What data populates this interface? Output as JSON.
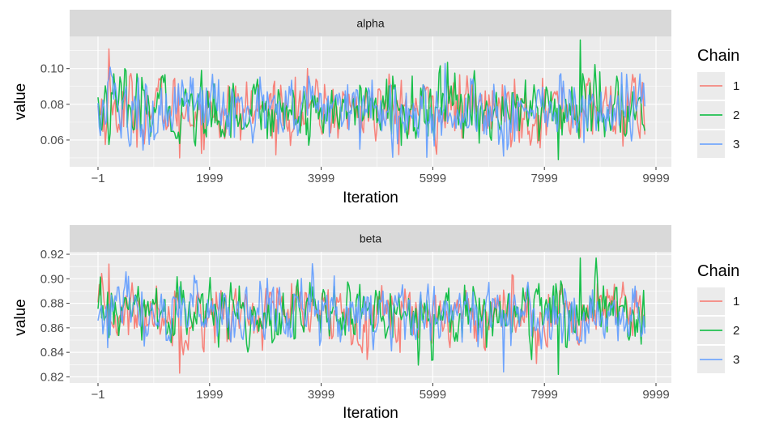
{
  "chart_data": [
    {
      "type": "line",
      "strip_title": "alpha",
      "xlabel": "Iteration",
      "ylabel": "value",
      "xlim": [
        -1,
        9999
      ],
      "ylim": [
        0.045,
        0.118
      ],
      "x_ticks": [
        -1,
        1999,
        3999,
        5999,
        7999,
        9999
      ],
      "x_tick_labels": [
        "−1",
        "1999",
        "3999",
        "5999",
        "7999",
        "9999"
      ],
      "y_ticks": [
        0.06,
        0.08,
        0.1
      ],
      "y_tick_labels": [
        "0.06",
        "0.08",
        "0.10"
      ],
      "iterations": [
        -1,
        9799
      ],
      "mean": 0.077,
      "spread": 0.0095,
      "extremes": [
        0.048,
        0.116
      ],
      "series": [
        {
          "name": "1",
          "color": "#F8766D"
        },
        {
          "name": "2",
          "color": "#00BA38"
        },
        {
          "name": "3",
          "color": "#619CFF"
        }
      ],
      "grid": true,
      "legend_title": "Chain",
      "legend_position": "right"
    },
    {
      "type": "line",
      "strip_title": "beta",
      "xlabel": "Iteration",
      "ylabel": "value",
      "xlim": [
        -1,
        9999
      ],
      "ylim": [
        0.815,
        0.922
      ],
      "x_ticks": [
        -1,
        1999,
        3999,
        5999,
        7999,
        9999
      ],
      "x_tick_labels": [
        "−1",
        "1999",
        "3999",
        "5999",
        "7999",
        "9999"
      ],
      "y_ticks": [
        0.82,
        0.84,
        0.86,
        0.88,
        0.9,
        0.92
      ],
      "y_tick_labels": [
        "0.82",
        "0.84",
        "0.86",
        "0.88",
        "0.90",
        "0.92"
      ],
      "iterations": [
        -1,
        9799
      ],
      "mean": 0.872,
      "spread": 0.013,
      "extremes": [
        0.821,
        0.917
      ],
      "series": [
        {
          "name": "1",
          "color": "#F8766D"
        },
        {
          "name": "2",
          "color": "#00BA38"
        },
        {
          "name": "3",
          "color": "#619CFF"
        }
      ],
      "grid": true,
      "legend_title": "Chain",
      "legend_position": "right"
    }
  ]
}
